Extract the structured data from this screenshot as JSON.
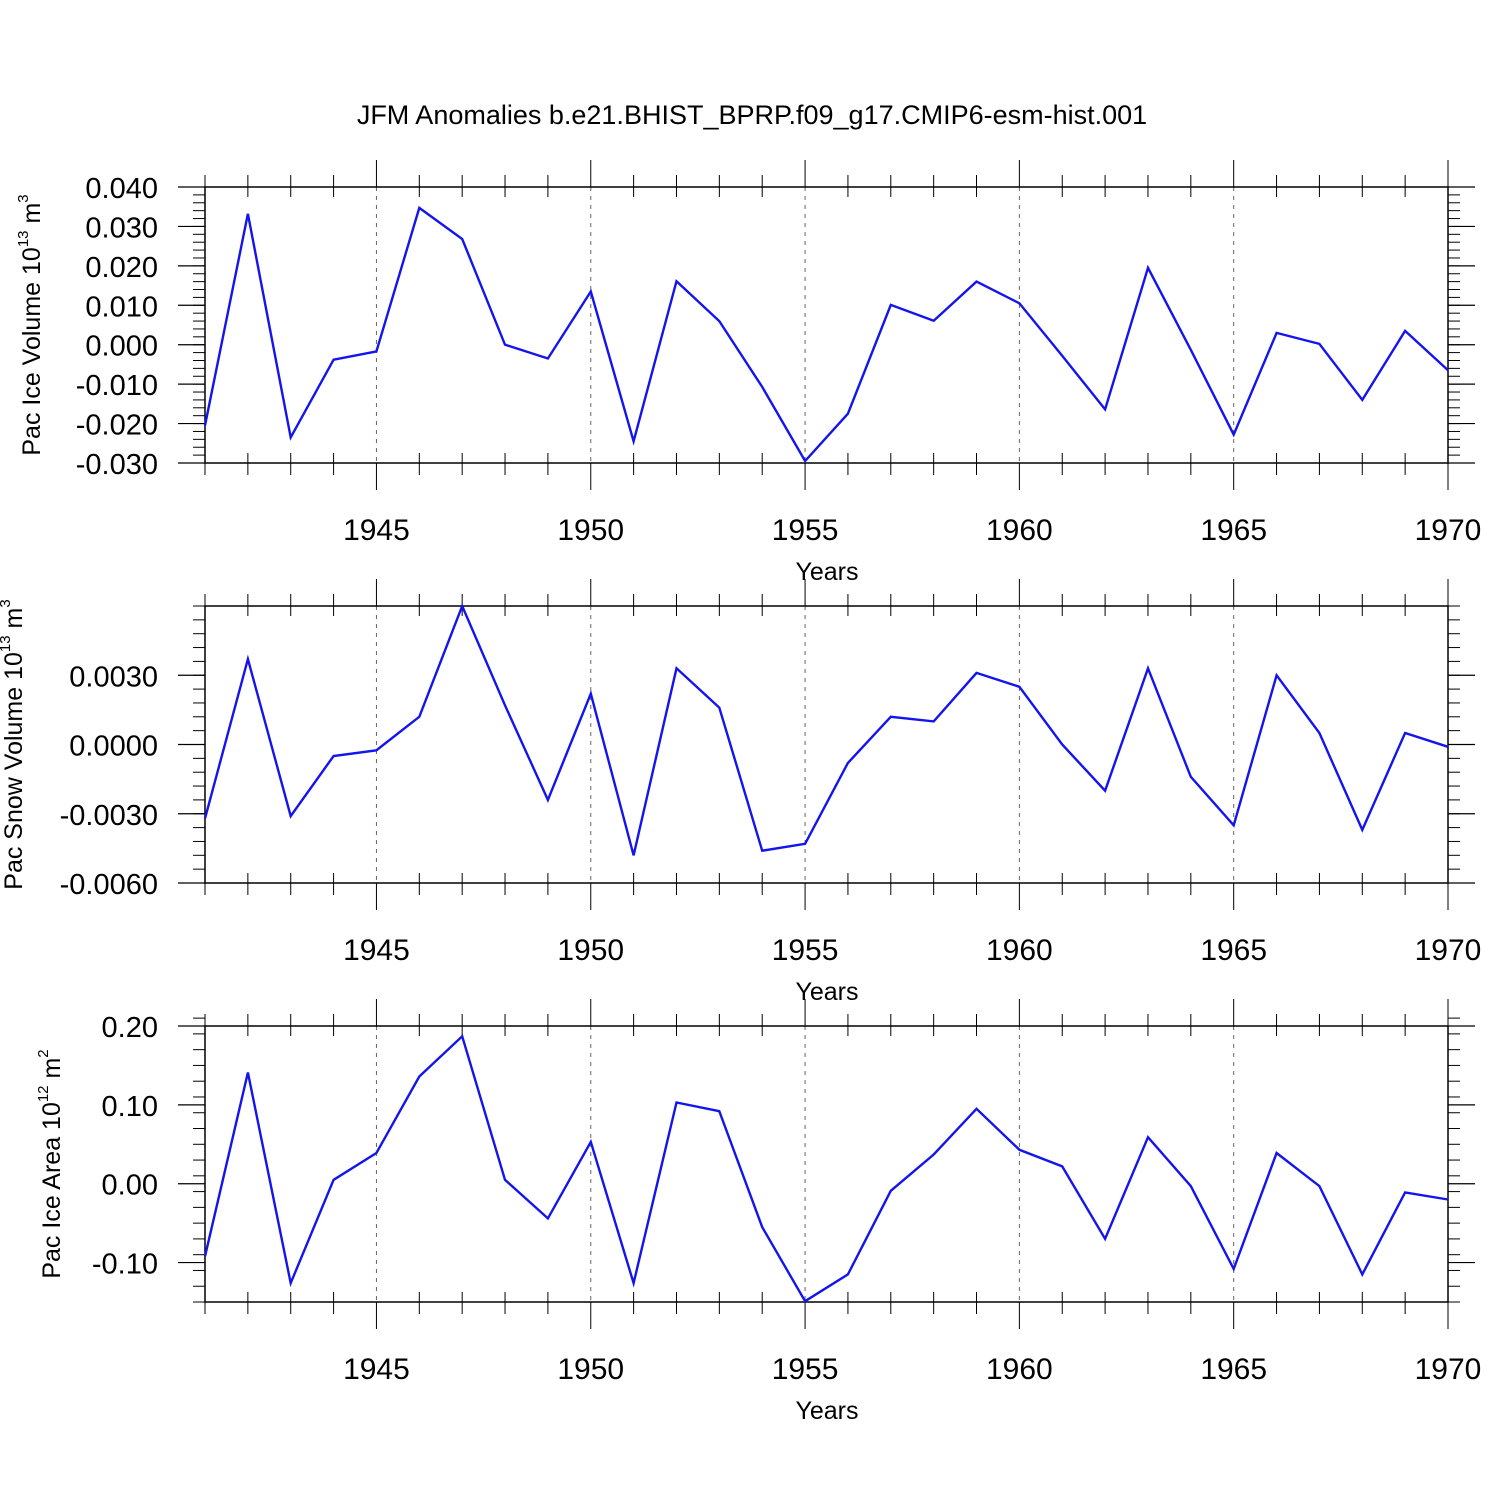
{
  "title": "JFM Anomalies b.e21.BHIST_BPRP.f09_g17.CMIP6-esm-hist.001",
  "chart_data": [
    {
      "type": "line",
      "ylabel": {
        "pre": "Pac Ice Volume 10",
        "exp": "13",
        "mid": " m",
        "unit_exp": "3"
      },
      "xlabel": "Years",
      "xlim": [
        1941,
        1970
      ],
      "ylim": [
        -0.03,
        0.04
      ],
      "ticks_y": [
        {
          "v": -0.03,
          "label": "-0.030"
        },
        {
          "v": -0.02,
          "label": "-0.020"
        },
        {
          "v": -0.01,
          "label": "-0.010"
        },
        {
          "v": 0.0,
          "label": "0.000"
        },
        {
          "v": 0.01,
          "label": "0.010"
        },
        {
          "v": 0.02,
          "label": "0.020"
        },
        {
          "v": 0.03,
          "label": "0.030"
        },
        {
          "v": 0.04,
          "label": "0.040"
        }
      ],
      "minor_step_y": 0.002,
      "ticks_x": [
        {
          "v": 1945,
          "label": "1945"
        },
        {
          "v": 1950,
          "label": "1950"
        },
        {
          "v": 1955,
          "label": "1955"
        },
        {
          "v": 1960,
          "label": "1960"
        },
        {
          "v": 1965,
          "label": "1965"
        },
        {
          "v": 1970,
          "label": "1970"
        }
      ],
      "color": "#1414ee",
      "x": [
        1941,
        1942,
        1943,
        1944,
        1945,
        1946,
        1947,
        1948,
        1949,
        1950,
        1951,
        1952,
        1953,
        1954,
        1955,
        1956,
        1957,
        1958,
        1959,
        1960,
        1961,
        1962,
        1963,
        1964,
        1965,
        1966,
        1967,
        1968,
        1969,
        1970
      ],
      "values": [
        -0.0205,
        0.0332,
        -0.0235,
        -0.0038,
        -0.0017,
        0.0347,
        0.0268,
        0.0,
        -0.0035,
        0.0135,
        -0.0245,
        0.0161,
        0.006,
        -0.0107,
        -0.0295,
        -0.0175,
        0.0101,
        0.0061,
        0.016,
        0.0105,
        -0.0028,
        -0.0164,
        0.0195,
        -0.0013,
        -0.0228,
        0.003,
        0.0002,
        -0.014,
        0.0035,
        -0.0065
      ]
    },
    {
      "type": "line",
      "ylabel": {
        "pre": "Pac Snow Volume 10",
        "exp": "13",
        "mid": " m",
        "unit_exp": "3"
      },
      "xlabel": "Years",
      "xlim": [
        1941,
        1970
      ],
      "ylim": [
        -0.006,
        0.006
      ],
      "ticks_y": [
        {
          "v": -0.006,
          "label": "-0.0060"
        },
        {
          "v": -0.003,
          "label": "-0.0030"
        },
        {
          "v": 0.0,
          "label": "0.0000"
        },
        {
          "v": 0.003,
          "label": "0.0030"
        }
      ],
      "minor_step_y": 0.0006,
      "ticks_x": [
        {
          "v": 1945,
          "label": "1945"
        },
        {
          "v": 1950,
          "label": "1950"
        },
        {
          "v": 1955,
          "label": "1955"
        },
        {
          "v": 1960,
          "label": "1960"
        },
        {
          "v": 1965,
          "label": "1965"
        },
        {
          "v": 1970,
          "label": "1970"
        }
      ],
      "color": "#1414ee",
      "x": [
        1941,
        1942,
        1943,
        1944,
        1945,
        1946,
        1947,
        1948,
        1949,
        1950,
        1951,
        1952,
        1953,
        1954,
        1955,
        1956,
        1957,
        1958,
        1959,
        1960,
        1961,
        1962,
        1963,
        1964,
        1965,
        1966,
        1967,
        1968,
        1969,
        1970
      ],
      "values": [
        -0.0032,
        0.0037,
        -0.0031,
        -0.0005,
        -0.00025,
        0.0012,
        0.006,
        0.0017,
        -0.0024,
        0.0022,
        -0.0048,
        0.0033,
        0.0016,
        -0.0046,
        -0.0043,
        -0.0008,
        0.0012,
        0.001,
        0.0031,
        0.0025,
        0.0,
        -0.002,
        0.0033,
        -0.0014,
        -0.0035,
        0.003,
        0.0005,
        -0.0037,
        0.0005,
        -0.0001
      ]
    },
    {
      "type": "line",
      "ylabel": {
        "pre": "Pac Ice Area 10",
        "exp": "12",
        "mid": " m",
        "unit_exp": "2"
      },
      "xlabel": "Years",
      "xlim": [
        1941,
        1970
      ],
      "ylim": [
        -0.15,
        0.2
      ],
      "ticks_y": [
        {
          "v": -0.1,
          "label": "-0.10"
        },
        {
          "v": 0.0,
          "label": "0.00"
        },
        {
          "v": 0.1,
          "label": "0.10"
        },
        {
          "v": 0.2,
          "label": "0.20"
        }
      ],
      "minor_step_y": 0.02,
      "ticks_x": [
        {
          "v": 1945,
          "label": "1945"
        },
        {
          "v": 1950,
          "label": "1950"
        },
        {
          "v": 1955,
          "label": "1955"
        },
        {
          "v": 1960,
          "label": "1960"
        },
        {
          "v": 1965,
          "label": "1965"
        },
        {
          "v": 1970,
          "label": "1970"
        }
      ],
      "color": "#1414ee",
      "x": [
        1941,
        1942,
        1943,
        1944,
        1945,
        1946,
        1947,
        1948,
        1949,
        1950,
        1951,
        1952,
        1953,
        1954,
        1955,
        1956,
        1957,
        1958,
        1959,
        1960,
        1961,
        1962,
        1963,
        1964,
        1965,
        1966,
        1967,
        1968,
        1969,
        1970
      ],
      "values": [
        -0.092,
        0.141,
        -0.126,
        0.005,
        0.039,
        0.136,
        0.187,
        0.005,
        -0.044,
        0.053,
        -0.126,
        0.103,
        0.092,
        -0.055,
        -0.149,
        -0.115,
        -0.009,
        0.037,
        0.095,
        0.043,
        0.022,
        -0.07,
        0.059,
        -0.003,
        -0.108,
        0.039,
        -0.003,
        -0.115,
        -0.011,
        -0.02
      ]
    }
  ]
}
